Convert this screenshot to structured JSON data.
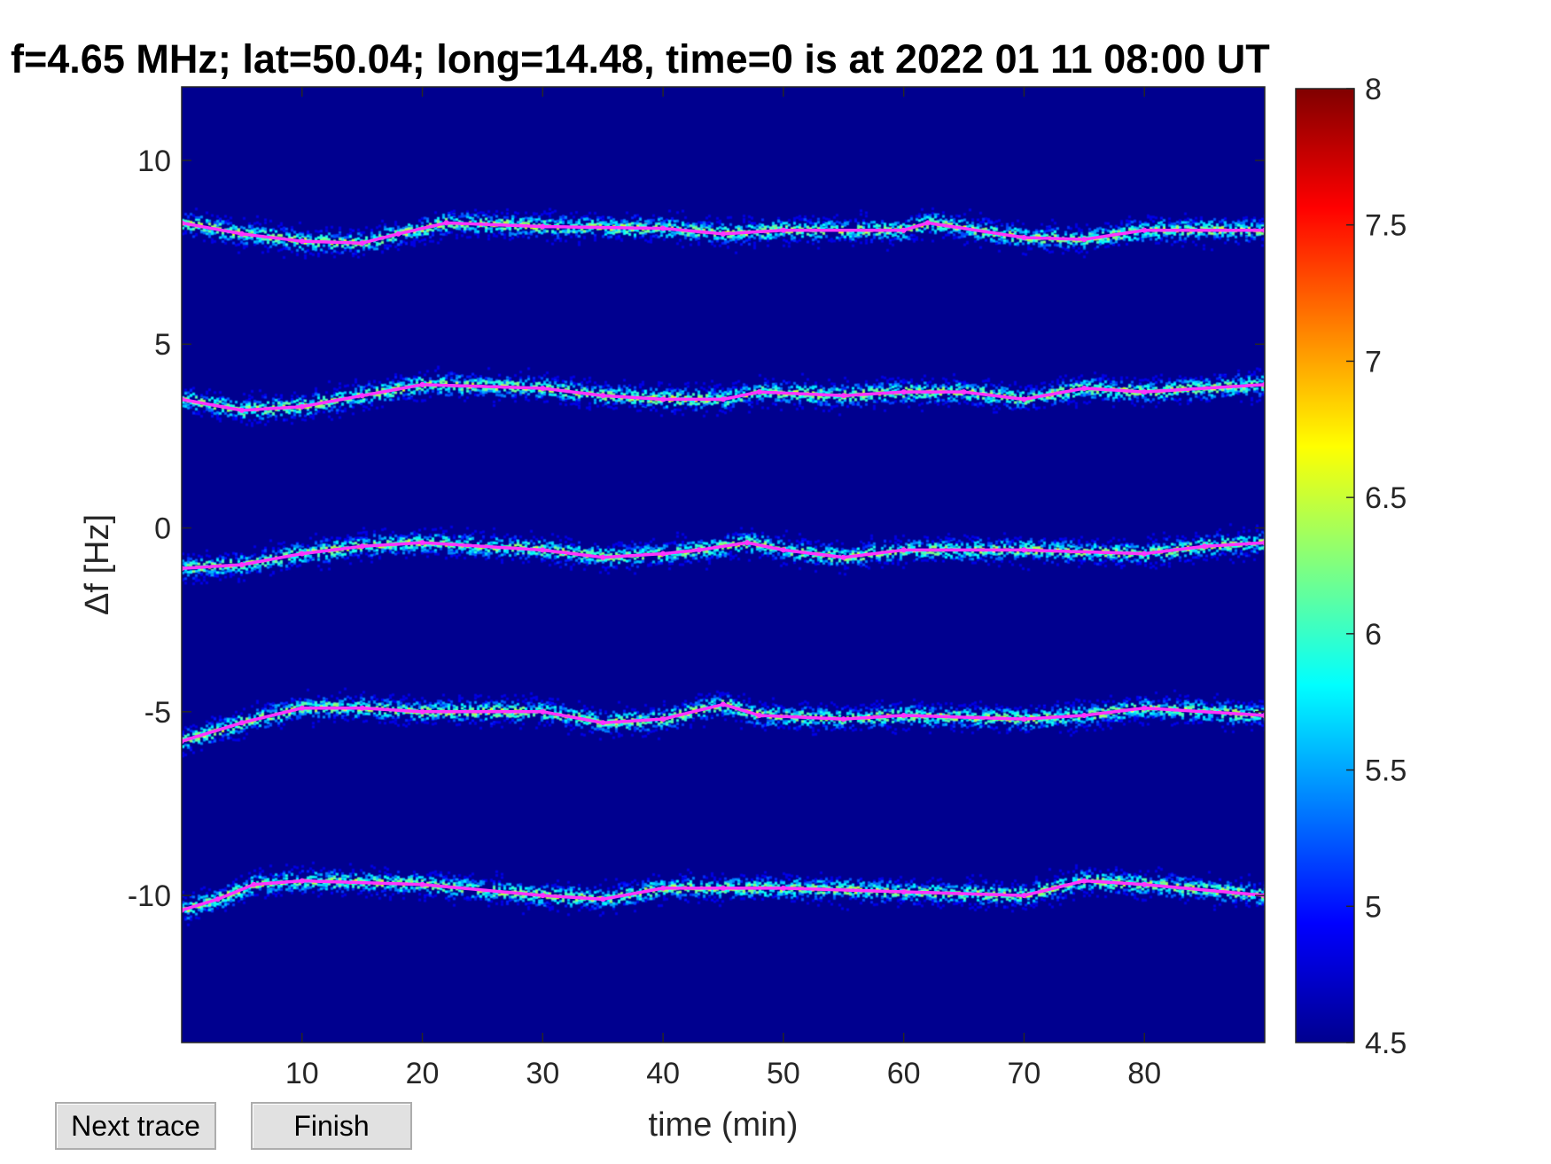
{
  "chart_data": {
    "type": "heatmap",
    "title": "f=4.65 MHz;  lat=50.04; long=14.48, time=0 is at 2022 01 11 08:00 UT",
    "xlabel": "time (min)",
    "ylabel": "Δf [Hz]",
    "xlim": [
      0,
      90
    ],
    "ylim": [
      -14,
      12
    ],
    "xticks": [
      10,
      20,
      30,
      40,
      50,
      60,
      70,
      80
    ],
    "xtick_labels": [
      "10",
      "20",
      "30",
      "40",
      "50",
      "60",
      "70",
      "80"
    ],
    "yticks": [
      10,
      5,
      0,
      -5,
      -10
    ],
    "ytick_labels": [
      "10",
      "5",
      "0",
      "-5",
      "-10"
    ],
    "colorbar": {
      "range": [
        4.5,
        8
      ],
      "ticks": [
        8,
        7.5,
        7,
        6.5,
        6,
        5.5,
        5,
        4.5
      ],
      "tick_labels": [
        "8",
        "7.5",
        "7",
        "6.5",
        "6",
        "5.5",
        "5",
        "4.5"
      ],
      "colormap": "jet"
    },
    "background_color": "#00008f",
    "trace_color": "#ff33ff",
    "series": [
      {
        "x": [
          0,
          5,
          10,
          15,
          18,
          22,
          30,
          40,
          45,
          50,
          60,
          62,
          70,
          75,
          80,
          90
        ],
        "y": [
          8.3,
          8.0,
          7.8,
          7.75,
          8.0,
          8.3,
          8.2,
          8.15,
          8.0,
          8.1,
          8.1,
          8.3,
          7.9,
          7.85,
          8.1,
          8.1
        ]
      },
      {
        "x": [
          0,
          5,
          10,
          15,
          20,
          30,
          35,
          40,
          45,
          48,
          55,
          60,
          65,
          70,
          75,
          80,
          90
        ],
        "y": [
          3.5,
          3.2,
          3.3,
          3.6,
          3.9,
          3.8,
          3.6,
          3.5,
          3.5,
          3.7,
          3.6,
          3.7,
          3.7,
          3.5,
          3.8,
          3.7,
          3.9
        ]
      },
      {
        "x": [
          0,
          5,
          10,
          15,
          20,
          30,
          35,
          40,
          43,
          47,
          50,
          55,
          60,
          70,
          80,
          85,
          90
        ],
        "y": [
          -1.1,
          -1.0,
          -0.7,
          -0.5,
          -0.4,
          -0.6,
          -0.8,
          -0.7,
          -0.6,
          -0.4,
          -0.6,
          -0.8,
          -0.6,
          -0.6,
          -0.7,
          -0.5,
          -0.4
        ]
      },
      {
        "x": [
          0,
          5,
          10,
          15,
          20,
          30,
          35,
          40,
          45,
          48,
          55,
          60,
          70,
          75,
          80,
          90
        ],
        "y": [
          -5.8,
          -5.3,
          -4.9,
          -4.9,
          -5.0,
          -5.0,
          -5.3,
          -5.2,
          -4.8,
          -5.1,
          -5.2,
          -5.1,
          -5.2,
          -5.1,
          -4.9,
          -5.1
        ]
      },
      {
        "x": [
          0,
          3,
          6,
          10,
          20,
          30,
          35,
          40,
          45,
          50,
          60,
          70,
          75,
          80,
          90
        ],
        "y": [
          -10.4,
          -10.1,
          -9.7,
          -9.6,
          -9.7,
          -10.0,
          -10.1,
          -9.8,
          -9.8,
          -9.8,
          -9.9,
          -10.0,
          -9.6,
          -9.7,
          -10.0
        ]
      }
    ]
  },
  "buttons": {
    "next_trace": "Next trace",
    "finish": "Finish"
  }
}
